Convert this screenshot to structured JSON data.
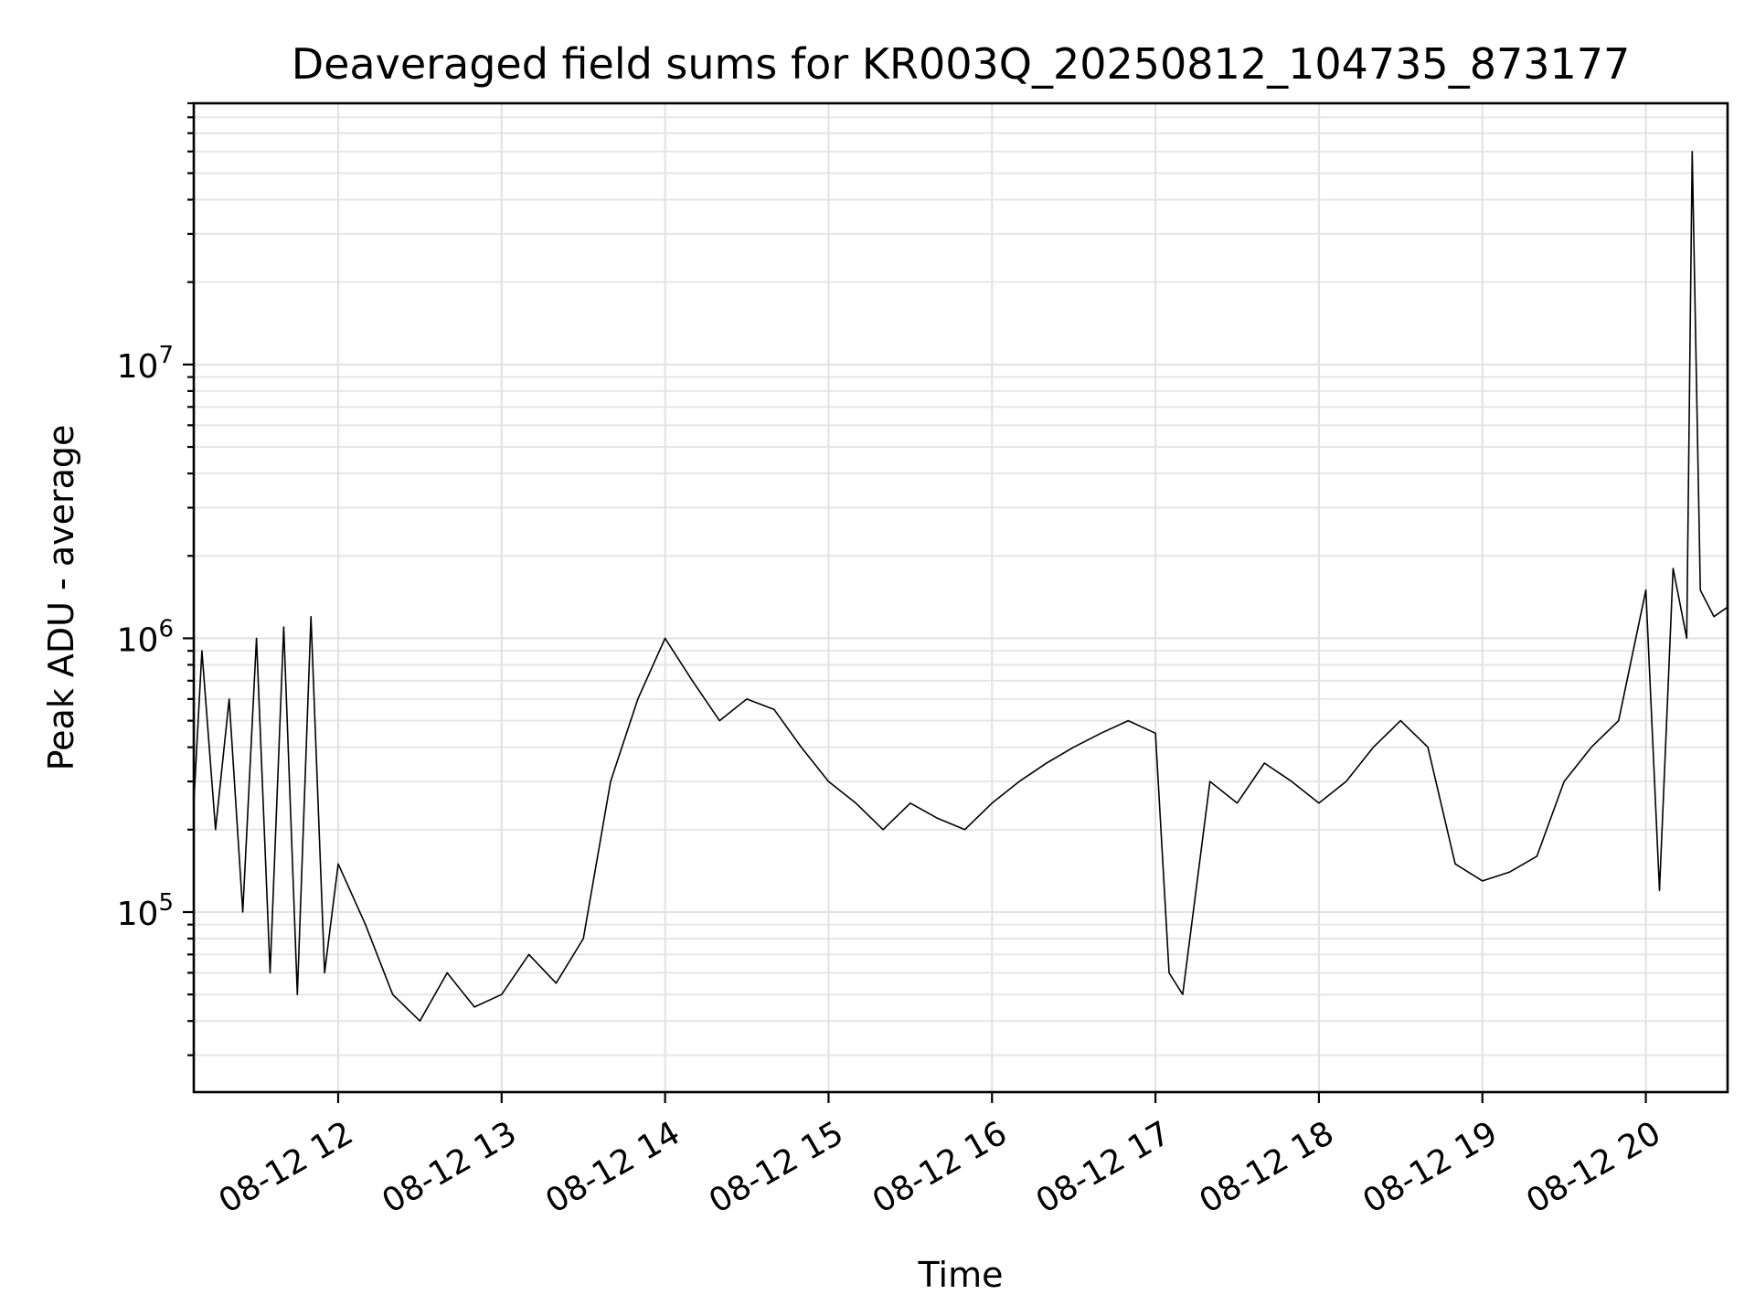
{
  "chart_data": {
    "type": "line",
    "title": "Deaveraged field sums for KR003Q_20250812_104735_873177",
    "xlabel": "Time",
    "ylabel": "Peak ADU - average",
    "yscale": "log",
    "xlim": [
      "2025-08-12 11:07",
      "2025-08-12 20:30"
    ],
    "ylim": [
      22000,
      90000000
    ],
    "grid": true,
    "line_color": "#000000",
    "x_ticks": [
      {
        "value": "2025-08-12 12:00",
        "label": "08-12 12"
      },
      {
        "value": "2025-08-12 13:00",
        "label": "08-12 13"
      },
      {
        "value": "2025-08-12 14:00",
        "label": "08-12 14"
      },
      {
        "value": "2025-08-12 15:00",
        "label": "08-12 15"
      },
      {
        "value": "2025-08-12 16:00",
        "label": "08-12 16"
      },
      {
        "value": "2025-08-12 17:00",
        "label": "08-12 17"
      },
      {
        "value": "2025-08-12 18:00",
        "label": "08-12 18"
      },
      {
        "value": "2025-08-12 19:00",
        "label": "08-12 19"
      },
      {
        "value": "2025-08-12 20:00",
        "label": "08-12 20"
      }
    ],
    "y_ticks": [
      {
        "value": 100000,
        "base": "10",
        "exp": "5"
      },
      {
        "value": 1000000,
        "base": "10",
        "exp": "6"
      },
      {
        "value": 10000000,
        "base": "10",
        "exp": "7"
      }
    ],
    "series": [
      {
        "points": [
          [
            "2025-08-12 11:07",
            250000
          ],
          [
            "2025-08-12 11:10",
            900000
          ],
          [
            "2025-08-12 11:15",
            200000
          ],
          [
            "2025-08-12 11:20",
            600000
          ],
          [
            "2025-08-12 11:25",
            100000
          ],
          [
            "2025-08-12 11:30",
            1000000
          ],
          [
            "2025-08-12 11:35",
            60000
          ],
          [
            "2025-08-12 11:40",
            1100000
          ],
          [
            "2025-08-12 11:45",
            50000
          ],
          [
            "2025-08-12 11:50",
            1200000
          ],
          [
            "2025-08-12 11:55",
            60000
          ],
          [
            "2025-08-12 12:00",
            150000
          ],
          [
            "2025-08-12 12:10",
            90000
          ],
          [
            "2025-08-12 12:20",
            50000
          ],
          [
            "2025-08-12 12:30",
            40000
          ],
          [
            "2025-08-12 12:40",
            60000
          ],
          [
            "2025-08-12 12:50",
            45000
          ],
          [
            "2025-08-12 13:00",
            50000
          ],
          [
            "2025-08-12 13:10",
            70000
          ],
          [
            "2025-08-12 13:20",
            55000
          ],
          [
            "2025-08-12 13:30",
            80000
          ],
          [
            "2025-08-12 13:40",
            300000
          ],
          [
            "2025-08-12 13:50",
            600000
          ],
          [
            "2025-08-12 14:00",
            1000000
          ],
          [
            "2025-08-12 14:10",
            700000
          ],
          [
            "2025-08-12 14:20",
            500000
          ],
          [
            "2025-08-12 14:30",
            600000
          ],
          [
            "2025-08-12 14:40",
            550000
          ],
          [
            "2025-08-12 14:50",
            400000
          ],
          [
            "2025-08-12 15:00",
            300000
          ],
          [
            "2025-08-12 15:10",
            250000
          ],
          [
            "2025-08-12 15:20",
            200000
          ],
          [
            "2025-08-12 15:30",
            250000
          ],
          [
            "2025-08-12 15:40",
            220000
          ],
          [
            "2025-08-12 15:50",
            200000
          ],
          [
            "2025-08-12 16:00",
            250000
          ],
          [
            "2025-08-12 16:10",
            300000
          ],
          [
            "2025-08-12 16:20",
            350000
          ],
          [
            "2025-08-12 16:30",
            400000
          ],
          [
            "2025-08-12 16:40",
            450000
          ],
          [
            "2025-08-12 16:50",
            500000
          ],
          [
            "2025-08-12 17:00",
            450000
          ],
          [
            "2025-08-12 17:05",
            60000
          ],
          [
            "2025-08-12 17:10",
            50000
          ],
          [
            "2025-08-12 17:20",
            300000
          ],
          [
            "2025-08-12 17:30",
            250000
          ],
          [
            "2025-08-12 17:40",
            350000
          ],
          [
            "2025-08-12 17:50",
            300000
          ],
          [
            "2025-08-12 18:00",
            250000
          ],
          [
            "2025-08-12 18:10",
            300000
          ],
          [
            "2025-08-12 18:20",
            400000
          ],
          [
            "2025-08-12 18:30",
            500000
          ],
          [
            "2025-08-12 18:40",
            400000
          ],
          [
            "2025-08-12 18:50",
            150000
          ],
          [
            "2025-08-12 19:00",
            130000
          ],
          [
            "2025-08-12 19:10",
            140000
          ],
          [
            "2025-08-12 19:20",
            160000
          ],
          [
            "2025-08-12 19:30",
            300000
          ],
          [
            "2025-08-12 19:40",
            400000
          ],
          [
            "2025-08-12 19:50",
            500000
          ],
          [
            "2025-08-12 20:00",
            1500000
          ],
          [
            "2025-08-12 20:05",
            120000
          ],
          [
            "2025-08-12 20:10",
            1800000
          ],
          [
            "2025-08-12 20:15",
            1000000
          ],
          [
            "2025-08-12 20:17",
            60000000
          ],
          [
            "2025-08-12 20:20",
            1500000
          ],
          [
            "2025-08-12 20:25",
            1200000
          ],
          [
            "2025-08-12 20:30",
            1300000
          ]
        ]
      }
    ]
  }
}
